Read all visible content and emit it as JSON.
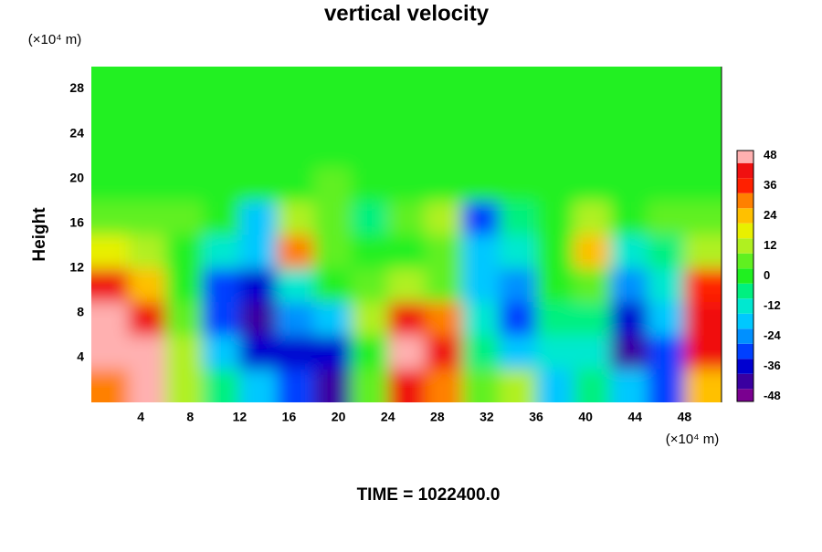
{
  "chart_data": {
    "type": "contour",
    "title": "vertical velocity",
    "ylabel": "Height",
    "x_unit": "(×10⁴ m)",
    "y_unit": "(×10⁴ m)",
    "time_label": "TIME = 1022400.0",
    "xlim": [
      0,
      51
    ],
    "ylim": [
      0,
      30
    ],
    "xticks": [
      4,
      8,
      12,
      16,
      20,
      24,
      28,
      32,
      36,
      40,
      44,
      48
    ],
    "yticks": [
      4,
      8,
      12,
      16,
      20,
      24,
      28
    ],
    "x": [
      1.5,
      4.5,
      7.5,
      10.5,
      13.5,
      16.5,
      19.5,
      22.5,
      25.5,
      28.5,
      31.5,
      34.5,
      37.5,
      40.5,
      43.5,
      46.5,
      49.5
    ],
    "y": [
      1.5,
      4.5,
      7.5,
      10.5,
      13.5,
      16.5,
      19.5,
      22.5,
      25.5,
      28.5
    ],
    "z": [
      [
        30,
        48,
        10,
        -5,
        -15,
        -30,
        -40,
        5,
        40,
        30,
        5,
        10,
        -20,
        -5,
        -15,
        -30,
        25
      ],
      [
        48,
        48,
        15,
        -15,
        -35,
        -35,
        -36,
        0,
        48,
        40,
        -5,
        -20,
        -10,
        -10,
        -40,
        -30,
        40
      ],
      [
        48,
        40,
        5,
        -30,
        -40,
        -25,
        -15,
        10,
        45,
        30,
        -10,
        -30,
        -5,
        -5,
        -35,
        -20,
        45
      ],
      [
        40,
        25,
        0,
        -30,
        -35,
        -10,
        0,
        5,
        10,
        5,
        -15,
        -25,
        0,
        5,
        -25,
        -10,
        35
      ],
      [
        20,
        10,
        0,
        -10,
        -15,
        30,
        5,
        0,
        0,
        5,
        -20,
        -10,
        0,
        25,
        -10,
        -5,
        15
      ],
      [
        5,
        5,
        5,
        0,
        -20,
        15,
        5,
        -5,
        5,
        15,
        -30,
        -5,
        0,
        10,
        0,
        5,
        5
      ],
      [
        3,
        2,
        3,
        0,
        2,
        3,
        5,
        2,
        3,
        2,
        3,
        0,
        2,
        3,
        2,
        3,
        2
      ],
      [
        -2,
        -2,
        -2,
        -2,
        -2,
        -2,
        -2,
        -2,
        -2,
        -2,
        -2,
        -2,
        -2,
        -2,
        -2,
        -2,
        -2
      ],
      [
        -2,
        -2,
        -2,
        -2,
        -2,
        -2,
        -2,
        -2,
        -2,
        -2,
        -2,
        -2,
        -2,
        -2,
        -2,
        -2,
        -2
      ],
      [
        -2,
        -2,
        -2,
        -2,
        -2,
        -2,
        -2,
        -2,
        -2,
        -2,
        -2,
        -2,
        -2,
        -2,
        -2,
        -2,
        -2
      ]
    ],
    "levels": [
      -48,
      -42,
      -36,
      -30,
      -24,
      -18,
      -12,
      -6,
      0,
      6,
      12,
      18,
      24,
      30,
      36,
      42,
      48
    ],
    "colors": [
      "#7a0090",
      "#3a00a0",
      "#0000d0",
      "#0040ff",
      "#0090ff",
      "#00c8ff",
      "#00e8d0",
      "#00f080",
      "#20f020",
      "#60f020",
      "#b0f020",
      "#e8f000",
      "#ffc000",
      "#ff8000",
      "#ff2000",
      "#f01010",
      "#ffb0b0"
    ],
    "clim": [
      -50,
      50
    ],
    "cbticks": [
      -48,
      -36,
      -24,
      -12,
      0,
      12,
      24,
      36,
      48
    ]
  }
}
